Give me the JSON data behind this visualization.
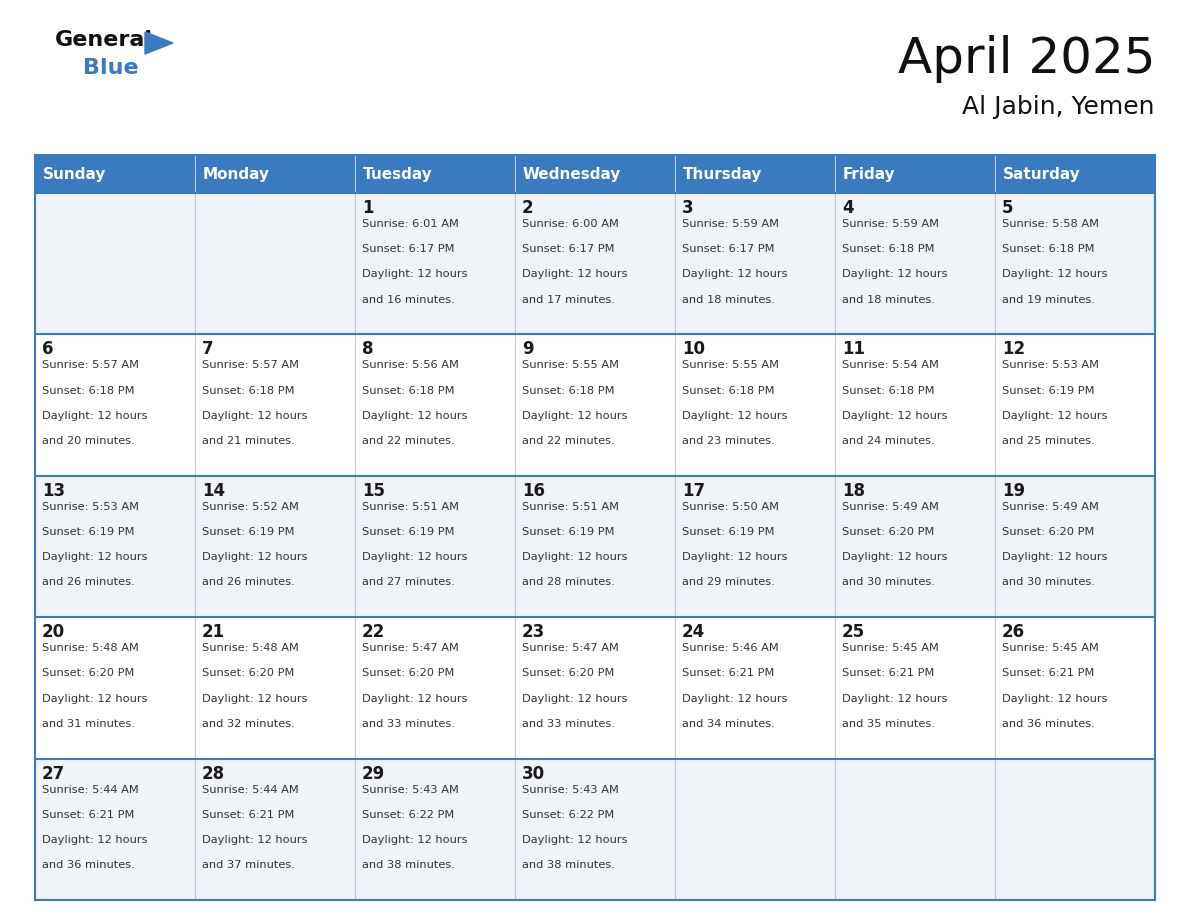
{
  "title": "April 2025",
  "subtitle": "Al Jabin, Yemen",
  "header_bg": "#3a7abf",
  "header_text": "#ffffff",
  "row_bg_odd": "#f0f3f7",
  "row_bg_even": "#ffffff",
  "border_color": "#3a7abf",
  "text_color": "#333333",
  "days_of_week": [
    "Sunday",
    "Monday",
    "Tuesday",
    "Wednesday",
    "Thursday",
    "Friday",
    "Saturday"
  ],
  "calendar": [
    [
      {
        "day": null,
        "sunrise": null,
        "sunset": null,
        "daylight_line1": null,
        "daylight_line2": null
      },
      {
        "day": null,
        "sunrise": null,
        "sunset": null,
        "daylight_line1": null,
        "daylight_line2": null
      },
      {
        "day": "1",
        "sunrise": "6:01 AM",
        "sunset": "6:17 PM",
        "daylight_line1": "Daylight: 12 hours",
        "daylight_line2": "and 16 minutes."
      },
      {
        "day": "2",
        "sunrise": "6:00 AM",
        "sunset": "6:17 PM",
        "daylight_line1": "Daylight: 12 hours",
        "daylight_line2": "and 17 minutes."
      },
      {
        "day": "3",
        "sunrise": "5:59 AM",
        "sunset": "6:17 PM",
        "daylight_line1": "Daylight: 12 hours",
        "daylight_line2": "and 18 minutes."
      },
      {
        "day": "4",
        "sunrise": "5:59 AM",
        "sunset": "6:18 PM",
        "daylight_line1": "Daylight: 12 hours",
        "daylight_line2": "and 18 minutes."
      },
      {
        "day": "5",
        "sunrise": "5:58 AM",
        "sunset": "6:18 PM",
        "daylight_line1": "Daylight: 12 hours",
        "daylight_line2": "and 19 minutes."
      }
    ],
    [
      {
        "day": "6",
        "sunrise": "5:57 AM",
        "sunset": "6:18 PM",
        "daylight_line1": "Daylight: 12 hours",
        "daylight_line2": "and 20 minutes."
      },
      {
        "day": "7",
        "sunrise": "5:57 AM",
        "sunset": "6:18 PM",
        "daylight_line1": "Daylight: 12 hours",
        "daylight_line2": "and 21 minutes."
      },
      {
        "day": "8",
        "sunrise": "5:56 AM",
        "sunset": "6:18 PM",
        "daylight_line1": "Daylight: 12 hours",
        "daylight_line2": "and 22 minutes."
      },
      {
        "day": "9",
        "sunrise": "5:55 AM",
        "sunset": "6:18 PM",
        "daylight_line1": "Daylight: 12 hours",
        "daylight_line2": "and 22 minutes."
      },
      {
        "day": "10",
        "sunrise": "5:55 AM",
        "sunset": "6:18 PM",
        "daylight_line1": "Daylight: 12 hours",
        "daylight_line2": "and 23 minutes."
      },
      {
        "day": "11",
        "sunrise": "5:54 AM",
        "sunset": "6:18 PM",
        "daylight_line1": "Daylight: 12 hours",
        "daylight_line2": "and 24 minutes."
      },
      {
        "day": "12",
        "sunrise": "5:53 AM",
        "sunset": "6:19 PM",
        "daylight_line1": "Daylight: 12 hours",
        "daylight_line2": "and 25 minutes."
      }
    ],
    [
      {
        "day": "13",
        "sunrise": "5:53 AM",
        "sunset": "6:19 PM",
        "daylight_line1": "Daylight: 12 hours",
        "daylight_line2": "and 26 minutes."
      },
      {
        "day": "14",
        "sunrise": "5:52 AM",
        "sunset": "6:19 PM",
        "daylight_line1": "Daylight: 12 hours",
        "daylight_line2": "and 26 minutes."
      },
      {
        "day": "15",
        "sunrise": "5:51 AM",
        "sunset": "6:19 PM",
        "daylight_line1": "Daylight: 12 hours",
        "daylight_line2": "and 27 minutes."
      },
      {
        "day": "16",
        "sunrise": "5:51 AM",
        "sunset": "6:19 PM",
        "daylight_line1": "Daylight: 12 hours",
        "daylight_line2": "and 28 minutes."
      },
      {
        "day": "17",
        "sunrise": "5:50 AM",
        "sunset": "6:19 PM",
        "daylight_line1": "Daylight: 12 hours",
        "daylight_line2": "and 29 minutes."
      },
      {
        "day": "18",
        "sunrise": "5:49 AM",
        "sunset": "6:20 PM",
        "daylight_line1": "Daylight: 12 hours",
        "daylight_line2": "and 30 minutes."
      },
      {
        "day": "19",
        "sunrise": "5:49 AM",
        "sunset": "6:20 PM",
        "daylight_line1": "Daylight: 12 hours",
        "daylight_line2": "and 30 minutes."
      }
    ],
    [
      {
        "day": "20",
        "sunrise": "5:48 AM",
        "sunset": "6:20 PM",
        "daylight_line1": "Daylight: 12 hours",
        "daylight_line2": "and 31 minutes."
      },
      {
        "day": "21",
        "sunrise": "5:48 AM",
        "sunset": "6:20 PM",
        "daylight_line1": "Daylight: 12 hours",
        "daylight_line2": "and 32 minutes."
      },
      {
        "day": "22",
        "sunrise": "5:47 AM",
        "sunset": "6:20 PM",
        "daylight_line1": "Daylight: 12 hours",
        "daylight_line2": "and 33 minutes."
      },
      {
        "day": "23",
        "sunrise": "5:47 AM",
        "sunset": "6:20 PM",
        "daylight_line1": "Daylight: 12 hours",
        "daylight_line2": "and 33 minutes."
      },
      {
        "day": "24",
        "sunrise": "5:46 AM",
        "sunset": "6:21 PM",
        "daylight_line1": "Daylight: 12 hours",
        "daylight_line2": "and 34 minutes."
      },
      {
        "day": "25",
        "sunrise": "5:45 AM",
        "sunset": "6:21 PM",
        "daylight_line1": "Daylight: 12 hours",
        "daylight_line2": "and 35 minutes."
      },
      {
        "day": "26",
        "sunrise": "5:45 AM",
        "sunset": "6:21 PM",
        "daylight_line1": "Daylight: 12 hours",
        "daylight_line2": "and 36 minutes."
      }
    ],
    [
      {
        "day": "27",
        "sunrise": "5:44 AM",
        "sunset": "6:21 PM",
        "daylight_line1": "Daylight: 12 hours",
        "daylight_line2": "and 36 minutes."
      },
      {
        "day": "28",
        "sunrise": "5:44 AM",
        "sunset": "6:21 PM",
        "daylight_line1": "Daylight: 12 hours",
        "daylight_line2": "and 37 minutes."
      },
      {
        "day": "29",
        "sunrise": "5:43 AM",
        "sunset": "6:22 PM",
        "daylight_line1": "Daylight: 12 hours",
        "daylight_line2": "and 38 minutes."
      },
      {
        "day": "30",
        "sunrise": "5:43 AM",
        "sunset": "6:22 PM",
        "daylight_line1": "Daylight: 12 hours",
        "daylight_line2": "and 38 minutes."
      },
      {
        "day": null,
        "sunrise": null,
        "sunset": null,
        "daylight_line1": null,
        "daylight_line2": null
      },
      {
        "day": null,
        "sunrise": null,
        "sunset": null,
        "daylight_line1": null,
        "daylight_line2": null
      },
      {
        "day": null,
        "sunrise": null,
        "sunset": null,
        "daylight_line1": null,
        "daylight_line2": null
      }
    ]
  ],
  "title_fontsize": 36,
  "subtitle_fontsize": 18,
  "dow_fontsize": 11,
  "day_num_fontsize": 12,
  "cell_text_fontsize": 8.2
}
